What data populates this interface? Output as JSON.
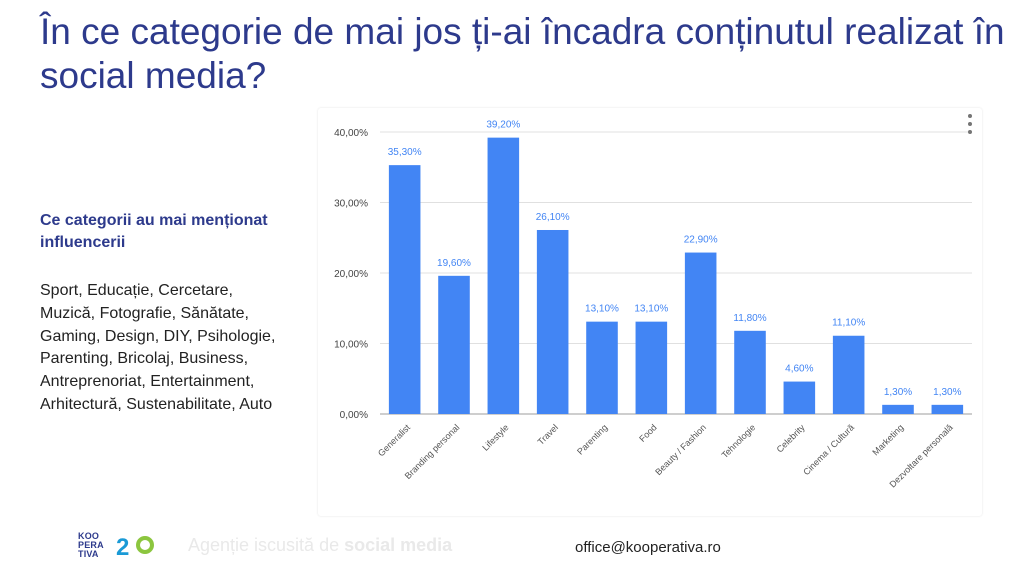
{
  "page": {
    "title": "În ce categorie de mai jos ți-ai încadra conținutul realizat în social media?",
    "side_heading": "Ce categorii au mai menționat influencerii",
    "side_text": "Sport, Educație, Cercetare, Muzică, Fotografie, Sănătate, Gaming, Design, DIY, Psihologie, Parenting, Bricolaj, Business, Antreprenoriat, Entertainment, Arhitectură, Sustenabilitate, Auto"
  },
  "chart_data": {
    "type": "bar",
    "categories": [
      "Generalist",
      "Branding personal",
      "Lifestyle",
      "Travel",
      "Parenting",
      "Food",
      "Beauty / Fashion",
      "Tehnologie",
      "Celebrity",
      "Cinema / Cultură",
      "Marketing",
      "Dezvoltare personală"
    ],
    "values": [
      35.3,
      19.6,
      39.2,
      26.1,
      13.1,
      13.1,
      22.9,
      11.8,
      4.6,
      11.1,
      1.3,
      1.3
    ],
    "value_labels": [
      "35,30%",
      "19,60%",
      "39,20%",
      "26,10%",
      "13,10%",
      "13,10%",
      "22,90%",
      "11,80%",
      "4,60%",
      "11,10%",
      "1,30%",
      "1,30%"
    ],
    "y_ticks": [
      "0,00%",
      "10,00%",
      "20,00%",
      "30,00%",
      "40,00%"
    ],
    "ylim": [
      0,
      40
    ],
    "grid": true,
    "bar_color": "#4285f4",
    "label_color": "#4285f4"
  },
  "footer": {
    "logo_text": "KOO PERA TIVA",
    "logo_number": "2",
    "slogan_prefix": "Agenție iscusită de ",
    "slogan_bold": "social media",
    "email": "office@kooperativa.ro"
  }
}
